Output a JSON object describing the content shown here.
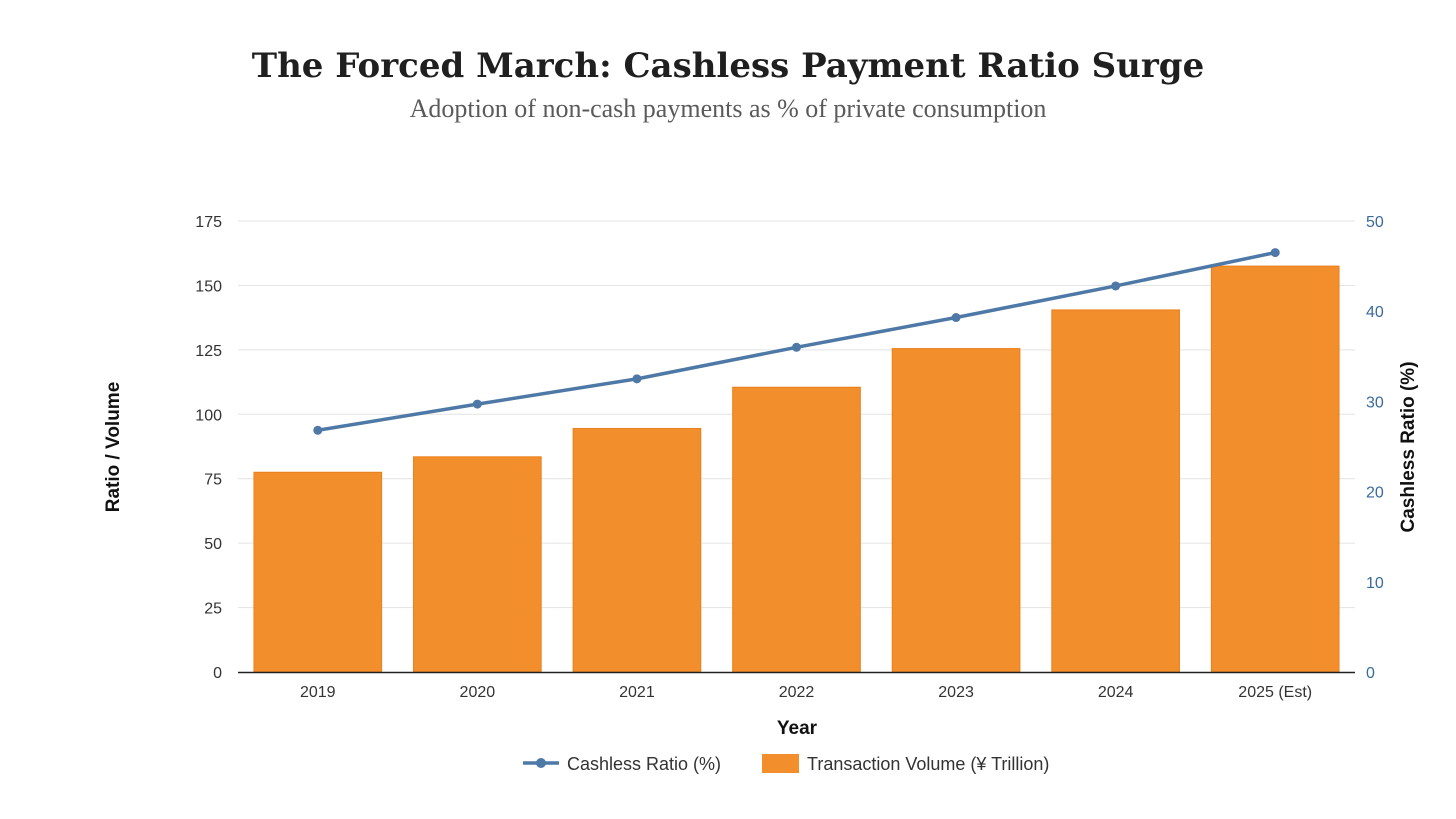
{
  "header": {
    "title": "The Forced March: Cashless Payment Ratio Surge",
    "subtitle": "Adoption of non-cash payments as % of private consumption"
  },
  "chart_data": {
    "type": "bar",
    "categories": [
      "2019",
      "2020",
      "2021",
      "2022",
      "2023",
      "2024",
      "2025 (Est)"
    ],
    "series": [
      {
        "name": "Transaction Volume (¥ Trillion)",
        "type": "bar",
        "axis": "left",
        "color": "#f28e2b",
        "values": [
          77.5,
          83.5,
          94.5,
          110.5,
          125.5,
          140.5,
          157.5
        ]
      },
      {
        "name": "Cashless Ratio (%)",
        "type": "line",
        "axis": "right",
        "color": "#4e79a7",
        "values": [
          26.8,
          29.7,
          32.5,
          36.0,
          39.3,
          42.8,
          46.5
        ]
      }
    ],
    "xlabel": "Year",
    "ylabel": "Ratio / Volume",
    "y2label": "Cashless Ratio (%)",
    "ylim": [
      0,
      175
    ],
    "yticks": [
      0,
      25,
      50,
      75,
      100,
      125,
      150,
      175
    ],
    "y2lim": [
      0,
      50
    ],
    "y2ticks": [
      0,
      10,
      20,
      30,
      40,
      50
    ],
    "grid": true,
    "legend_position": "bottom-center"
  }
}
